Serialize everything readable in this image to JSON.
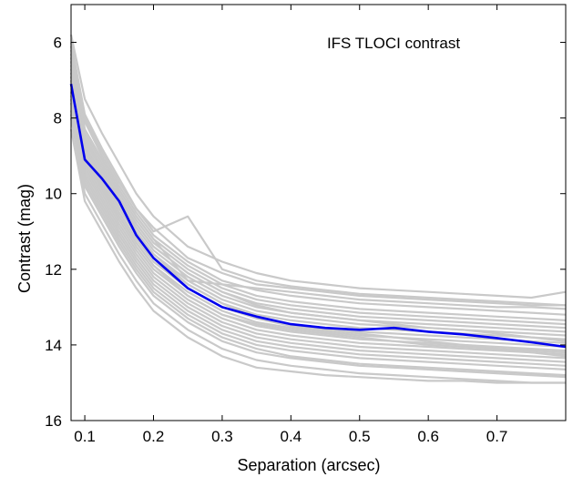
{
  "chart_data": {
    "type": "line",
    "title": "",
    "annotation": "IFS TLOCI contrast",
    "xlabel": "Separation (arcsec)",
    "ylabel": "Contrast (mag)",
    "xlim": [
      0.08,
      0.8
    ],
    "ylim": [
      16,
      5
    ],
    "y_reversed": true,
    "grid": false,
    "xticks": [
      "0.1",
      "0.2",
      "0.3",
      "0.4",
      "0.5",
      "0.6",
      "0.7"
    ],
    "yticks": [
      "6",
      "8",
      "10",
      "12",
      "14",
      "16"
    ],
    "x": [
      0.08,
      0.1,
      0.125,
      0.15,
      0.175,
      0.2,
      0.25,
      0.3,
      0.35,
      0.4,
      0.45,
      0.5,
      0.55,
      0.6,
      0.65,
      0.7,
      0.75,
      0.8
    ],
    "series": [
      {
        "color": "#0000ee",
        "highlight": true,
        "values": [
          7.1,
          9.1,
          9.6,
          10.2,
          11.1,
          11.7,
          12.5,
          13.0,
          13.25,
          13.45,
          13.55,
          13.6,
          13.55,
          13.65,
          13.72,
          13.82,
          13.93,
          14.05
        ]
      }
    ],
    "background_series": {
      "color": "#c9c9c9",
      "values": [
        [
          5.8,
          7.5,
          8.4,
          9.2,
          10.0,
          10.6,
          11.4,
          11.8,
          12.1,
          12.3,
          12.4,
          12.5,
          12.55,
          12.6,
          12.65,
          12.7,
          12.75,
          12.6
        ],
        [
          6.0,
          7.9,
          8.8,
          9.6,
          10.4,
          10.9,
          11.7,
          12.1,
          12.4,
          12.5,
          12.6,
          12.7,
          12.75,
          12.8,
          12.85,
          12.9,
          12.95,
          12.95
        ],
        [
          6.2,
          8.1,
          9.0,
          9.8,
          10.5,
          11.1,
          11.8,
          12.3,
          12.55,
          12.7,
          12.8,
          12.9,
          12.95,
          13.0,
          13.05,
          13.1,
          13.15,
          13.2
        ],
        [
          6.3,
          8.3,
          9.1,
          9.9,
          10.6,
          11.2,
          11.9,
          12.4,
          12.7,
          12.85,
          12.95,
          13.05,
          13.1,
          13.15,
          13.2,
          13.25,
          13.3,
          13.35
        ],
        [
          6.4,
          8.4,
          9.2,
          10.0,
          10.7,
          11.3,
          12.0,
          12.5,
          12.8,
          12.95,
          13.05,
          13.15,
          13.2,
          13.25,
          13.3,
          13.35,
          13.4,
          13.45
        ],
        [
          6.5,
          8.5,
          9.3,
          10.1,
          10.8,
          11.4,
          12.1,
          12.6,
          12.9,
          13.05,
          13.15,
          13.25,
          13.3,
          13.35,
          13.4,
          13.45,
          13.5,
          13.55
        ],
        [
          6.6,
          8.6,
          9.4,
          10.2,
          10.9,
          11.5,
          12.2,
          12.7,
          13.0,
          13.15,
          13.25,
          13.35,
          13.4,
          13.45,
          13.5,
          13.55,
          13.6,
          13.65
        ],
        [
          6.7,
          8.7,
          9.5,
          10.3,
          11.0,
          11.6,
          12.3,
          12.8,
          13.1,
          13.25,
          13.35,
          13.45,
          13.5,
          13.55,
          13.6,
          13.65,
          13.7,
          13.75
        ],
        [
          6.8,
          8.8,
          9.6,
          10.4,
          11.1,
          11.7,
          12.4,
          12.9,
          13.2,
          13.35,
          13.45,
          13.55,
          13.6,
          13.65,
          13.7,
          13.75,
          13.8,
          13.85
        ],
        [
          6.9,
          8.9,
          9.7,
          10.5,
          11.2,
          11.8,
          12.5,
          13.0,
          13.3,
          13.45,
          13.55,
          13.65,
          13.7,
          13.75,
          13.8,
          13.85,
          13.9,
          13.95
        ],
        [
          7.0,
          9.0,
          9.8,
          10.6,
          11.3,
          11.9,
          12.6,
          13.1,
          13.4,
          13.55,
          13.65,
          13.75,
          13.8,
          13.85,
          13.9,
          13.95,
          14.0,
          14.05
        ],
        [
          7.1,
          9.1,
          9.9,
          10.7,
          11.4,
          12.0,
          12.7,
          13.2,
          13.5,
          13.65,
          13.75,
          13.85,
          13.9,
          13.95,
          14.0,
          14.05,
          14.1,
          14.15
        ],
        [
          7.2,
          9.2,
          10.0,
          10.8,
          11.5,
          12.1,
          12.8,
          13.3,
          13.6,
          13.75,
          13.85,
          13.95,
          14.0,
          14.05,
          14.1,
          14.15,
          14.2,
          14.25
        ],
        [
          7.3,
          9.3,
          10.1,
          10.9,
          11.6,
          12.2,
          12.9,
          13.4,
          13.7,
          13.85,
          13.95,
          14.05,
          14.1,
          14.15,
          14.2,
          14.25,
          14.3,
          14.35
        ],
        [
          7.4,
          9.4,
          10.2,
          11.0,
          11.7,
          12.3,
          13.0,
          13.5,
          13.8,
          13.95,
          14.05,
          14.15,
          14.2,
          14.25,
          14.3,
          14.35,
          14.4,
          14.45
        ],
        [
          7.5,
          9.5,
          10.3,
          11.1,
          11.8,
          12.4,
          13.1,
          13.6,
          13.9,
          14.05,
          14.15,
          14.25,
          14.3,
          14.35,
          14.4,
          14.45,
          14.5,
          14.55
        ],
        [
          7.6,
          9.6,
          10.4,
          11.2,
          11.9,
          12.5,
          13.2,
          13.7,
          14.0,
          14.15,
          14.25,
          14.35,
          14.4,
          14.45,
          14.5,
          14.55,
          14.6,
          14.65
        ],
        [
          7.8,
          9.8,
          10.6,
          11.4,
          12.1,
          12.7,
          13.4,
          13.9,
          14.2,
          14.35,
          14.45,
          14.55,
          14.6,
          14.65,
          14.7,
          14.75,
          14.8,
          14.85
        ],
        [
          8.0,
          10.0,
          10.8,
          11.6,
          12.3,
          12.9,
          13.6,
          14.1,
          14.4,
          14.55,
          14.65,
          14.75,
          14.8,
          14.85,
          14.9,
          14.95,
          15.0,
          15.0
        ],
        [
          8.3,
          10.2,
          11.0,
          11.8,
          12.5,
          13.1,
          13.8,
          14.3,
          14.6,
          14.7,
          14.8,
          14.85,
          14.9,
          14.95,
          14.95,
          15.0,
          15.0,
          15.0
        ],
        [
          6.1,
          8.0,
          8.9,
          9.7,
          10.4,
          11.0,
          10.6,
          12.0,
          12.3,
          12.45,
          12.55,
          12.65,
          12.7,
          12.75,
          12.8,
          12.85,
          12.9,
          12.95
        ],
        [
          6.5,
          8.3,
          9.1,
          9.9,
          10.6,
          11.2,
          12.3,
          12.4,
          12.5,
          12.6,
          12.7,
          12.8,
          12.85,
          12.9,
          12.95,
          13.0,
          13.0,
          13.05
        ],
        [
          7.0,
          8.8,
          9.5,
          10.3,
          11.0,
          11.6,
          12.4,
          12.9,
          13.3,
          13.5,
          13.6,
          13.7,
          13.8,
          13.9,
          14.0,
          14.1,
          14.2,
          14.3
        ],
        [
          7.9,
          9.7,
          10.5,
          11.3,
          12.0,
          12.6,
          13.3,
          13.8,
          14.1,
          14.3,
          14.4,
          14.5,
          14.55,
          14.6,
          14.65,
          14.7,
          14.75,
          14.8
        ],
        [
          6.9,
          8.6,
          9.3,
          10.1,
          10.8,
          11.4,
          12.1,
          12.6,
          12.95,
          13.15,
          13.25,
          13.35,
          13.45,
          13.55,
          13.6,
          13.7,
          13.8,
          13.9
        ],
        [
          7.3,
          9.0,
          9.8,
          10.6,
          11.3,
          11.9,
          12.7,
          13.2,
          13.45,
          13.6,
          13.7,
          13.8,
          13.9,
          14.0,
          14.05,
          14.1,
          14.15,
          14.2
        ]
      ]
    }
  }
}
